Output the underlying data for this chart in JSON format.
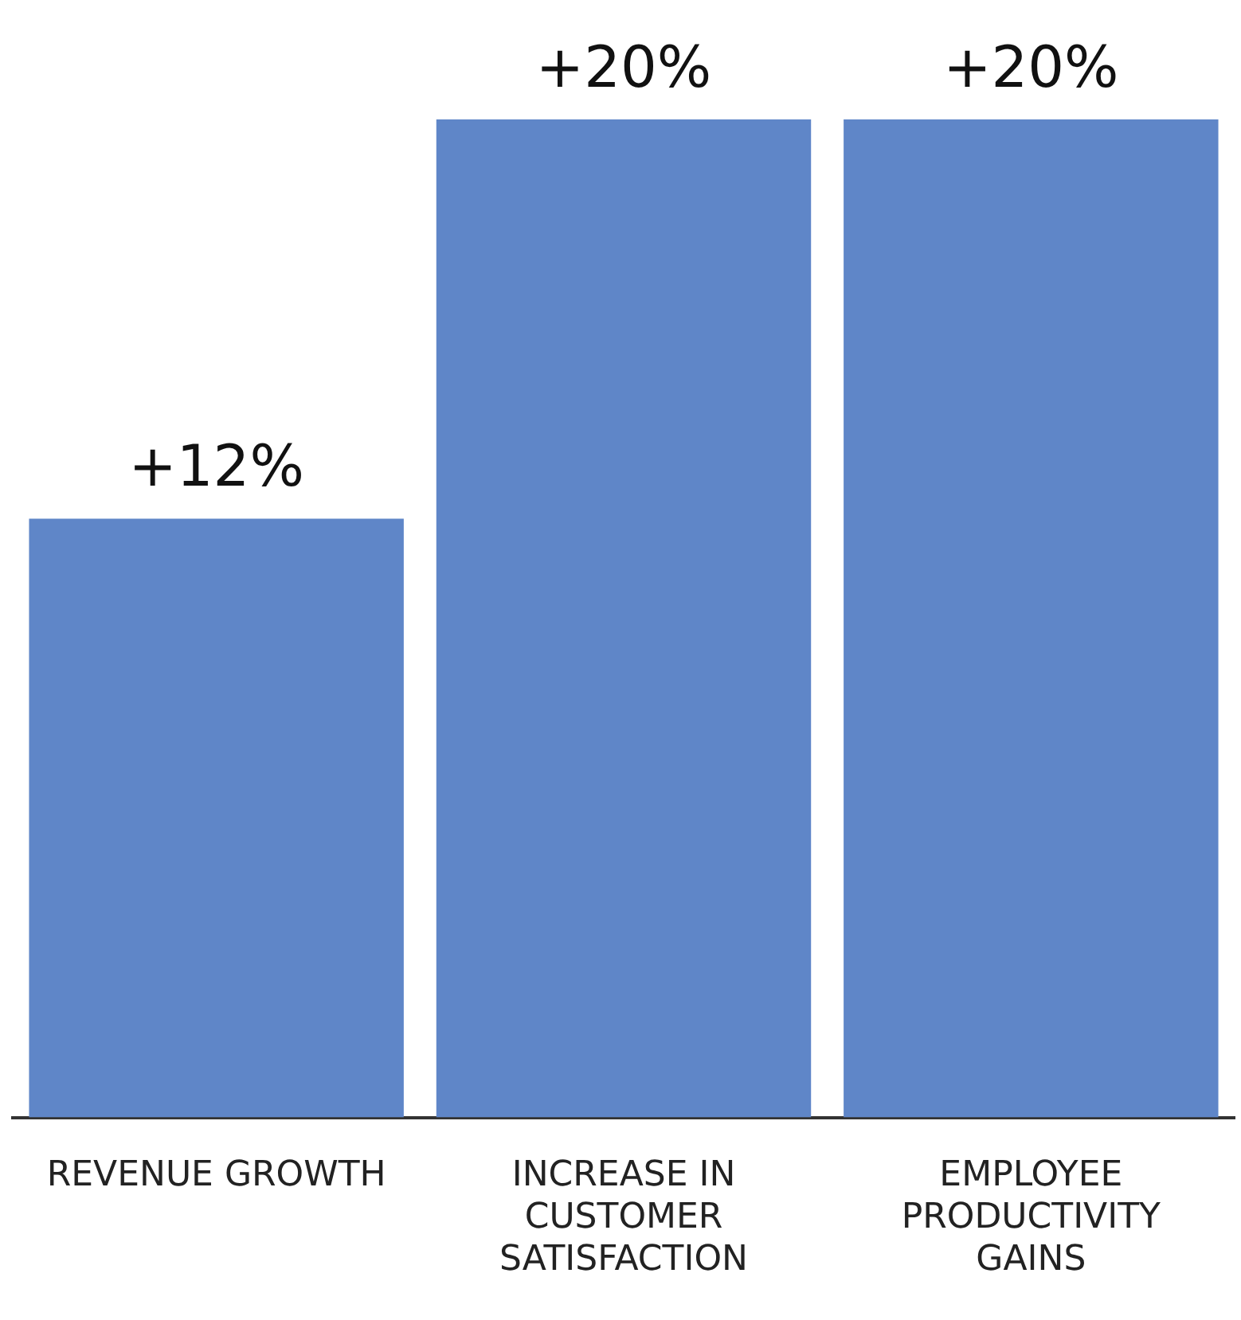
{
  "chart_data": {
    "type": "bar",
    "categories": [
      "REVENUE GROWTH",
      "INCREASE IN CUSTOMER SATISFACTION",
      "EMPLOYEE PRODUCTIVITY GAINS"
    ],
    "values": [
      12,
      20,
      20
    ],
    "value_labels": [
      "+12%",
      "+20%",
      "+20%"
    ],
    "color": "#5f86c8",
    "grid": false,
    "legend": false
  }
}
